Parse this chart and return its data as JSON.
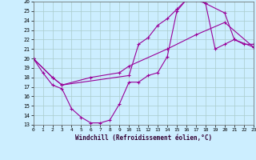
{
  "xlabel": "Windchill (Refroidissement éolien,°C)",
  "xlim": [
    0,
    23
  ],
  "ylim": [
    13,
    26
  ],
  "xticks": [
    0,
    1,
    2,
    3,
    4,
    5,
    6,
    7,
    8,
    9,
    10,
    11,
    12,
    13,
    14,
    15,
    16,
    17,
    18,
    19,
    20,
    21,
    22,
    23
  ],
  "yticks": [
    13,
    14,
    15,
    16,
    17,
    18,
    19,
    20,
    21,
    22,
    23,
    24,
    25,
    26
  ],
  "background_color": "#cceeff",
  "grid_color": "#aacccc",
  "line_color": "#990099",
  "line1_x": [
    0,
    1,
    2,
    3,
    4,
    5,
    6,
    7,
    8,
    9,
    10,
    11,
    12,
    13,
    14,
    15,
    16,
    17,
    18,
    19,
    20,
    21,
    22,
    23
  ],
  "line1_y": [
    20,
    18.5,
    17.2,
    16.8,
    14.7,
    13.8,
    13.2,
    13.2,
    13.5,
    15.2,
    17.5,
    17.5,
    18.2,
    18.5,
    20.2,
    25.0,
    26.2,
    26.2,
    25.8,
    21.0,
    21.5,
    22.0,
    21.5,
    21.5
  ],
  "line2_x": [
    0,
    2,
    3,
    10,
    11,
    12,
    13,
    14,
    15,
    16,
    17,
    18,
    20,
    21,
    23
  ],
  "line2_y": [
    20,
    18.0,
    17.2,
    18.2,
    21.5,
    22.2,
    23.5,
    24.2,
    25.2,
    26.2,
    26.5,
    25.8,
    24.8,
    22.0,
    21.2
  ],
  "line3_x": [
    0,
    2,
    3,
    6,
    9,
    10,
    14,
    17,
    20,
    23
  ],
  "line3_y": [
    20,
    18.0,
    17.2,
    18.0,
    18.5,
    19.2,
    21.0,
    22.5,
    23.8,
    21.2
  ]
}
